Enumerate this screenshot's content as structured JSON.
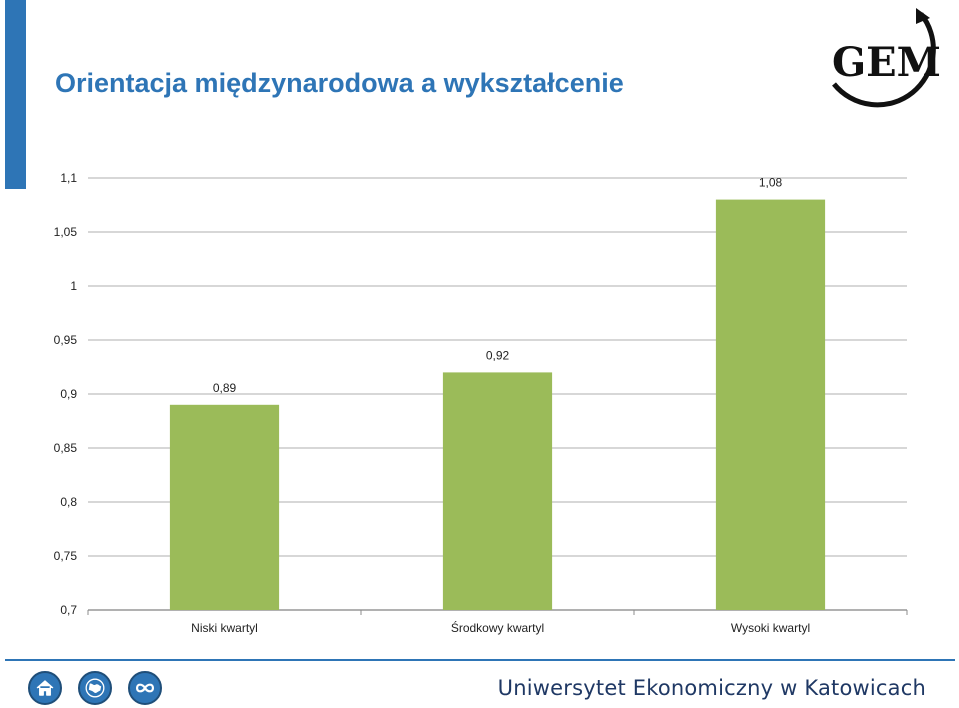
{
  "header": {
    "title": "Orientacja międzynarodowa a wykształcenie",
    "logo_text": "GEM",
    "accent_color": "#2e75b6"
  },
  "chart_data": {
    "type": "bar",
    "title": "",
    "categories": [
      "Niski kwartyl",
      "Środkowy kwartyl",
      "Wysoki kwartyl"
    ],
    "values": [
      0.89,
      0.92,
      1.08
    ],
    "value_labels": [
      "0,89",
      "0,92",
      "1,08"
    ],
    "ylim": [
      0.7,
      1.1
    ],
    "yticks": [
      0.7,
      0.75,
      0.8,
      0.85,
      0.9,
      0.95,
      1.0,
      1.05,
      1.1
    ],
    "ytick_labels": [
      "0,7",
      "0,75",
      "0,8",
      "0,85",
      "0,9",
      "0,95",
      "1",
      "1,05",
      "1,1"
    ],
    "grid": true,
    "legend": "none",
    "bar_color": "#9bbb59",
    "xlabel": "",
    "ylabel": ""
  },
  "footer": {
    "university": "Uniwersytet Ekonomiczny w Katowicach",
    "icons": [
      "home-icon",
      "globe-icon",
      "infinity-icon"
    ]
  }
}
